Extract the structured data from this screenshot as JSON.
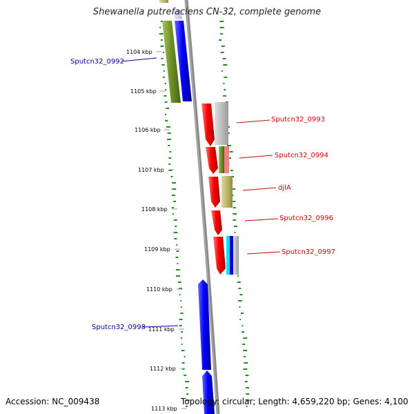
{
  "title": "Shewanella putrefaciens CN-32, complete genome",
  "footer": {
    "accession": "Accession: NC_009438",
    "summary": "Topology: circular; Length: 4,659,220 bp; Genes: 4,100"
  },
  "colors": {
    "plus_strand_cds": "#0000ff",
    "minus_strand_cds": "#ff0000",
    "gc_skew": "#228b22",
    "backbone": "#808080",
    "label_left": "#000099",
    "label_right": "#cc0000"
  },
  "ruler": {
    "unit": "kbp",
    "ticks": [
      "1104 kbp",
      "1105 kbp",
      "1106 kbp",
      "1107 kbp",
      "1108 kbp",
      "1109 kbp",
      "1110 kbp",
      "1111 kbp",
      "1112 kbp",
      "1113 kbp"
    ]
  },
  "genes": {
    "left": [
      "Sputcn32_0992",
      "Sputcn32_0998"
    ],
    "right": [
      "Sputcn32_0993",
      "Sputcn32_0994",
      "djlA",
      "Sputcn32_0996",
      "Sputcn32_0997"
    ]
  }
}
